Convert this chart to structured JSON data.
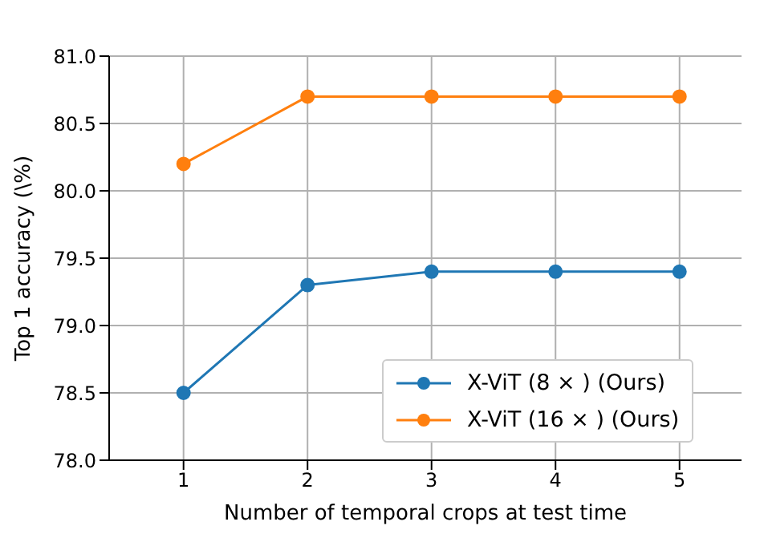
{
  "chart_data": {
    "type": "line",
    "xlabel": "Number of temporal crops at test time",
    "ylabel": "Top 1 accuracy (\\%)",
    "x": [
      1,
      2,
      3,
      4,
      5
    ],
    "series": [
      {
        "name": "X-ViT (8 × ) (Ours)",
        "color": "#1f77b4",
        "values": [
          78.5,
          79.3,
          79.4,
          79.4,
          79.4
        ]
      },
      {
        "name": "X-ViT (16 × ) (Ours)",
        "color": "#ff7f0e",
        "values": [
          80.2,
          80.7,
          80.7,
          80.7,
          80.7
        ]
      }
    ],
    "xlim": [
      0.4,
      5.5
    ],
    "xticks": [
      1,
      2,
      3,
      4,
      5
    ],
    "ylim": [
      78,
      81
    ],
    "yticks": [
      {
        "value": 78,
        "label": "78.0"
      },
      {
        "value": 78.5,
        "label": "78.5"
      },
      {
        "value": 79,
        "label": "79.0"
      },
      {
        "value": 79.5,
        "label": "79.5"
      },
      {
        "value": 80,
        "label": "80.0"
      },
      {
        "value": 80.5,
        "label": "80.5"
      },
      {
        "value": 81,
        "label": "81.0"
      }
    ],
    "grid": true,
    "legend": "bottom right",
    "marker": "circle",
    "line_style": "solid"
  }
}
